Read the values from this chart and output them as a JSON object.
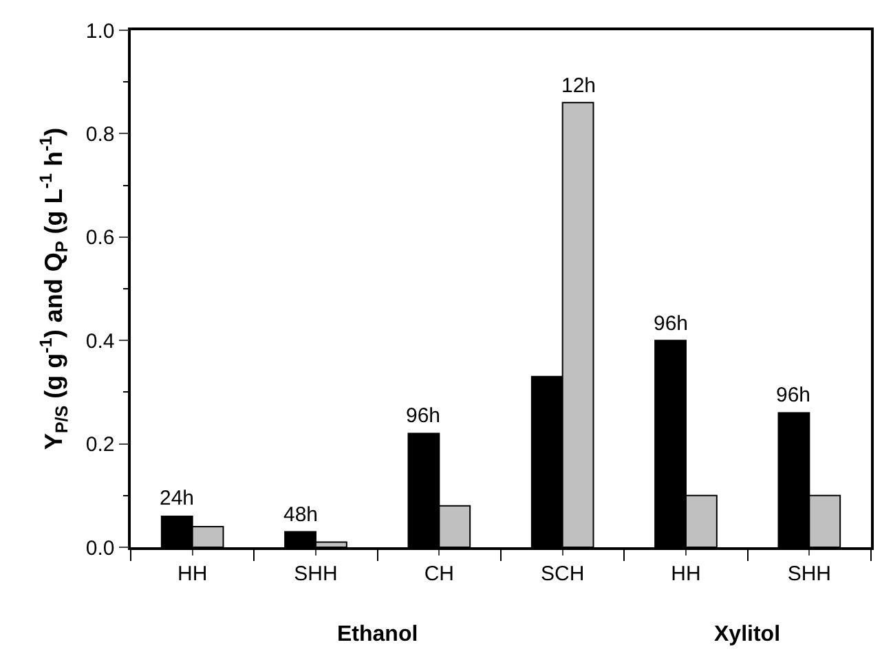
{
  "chart_data": {
    "type": "bar",
    "ylabel": "Y$_{P/S}$ (g g$^{-1}$) and Q$_{P}$ (g L$^{-1}$ h$^{-1}$)",
    "categories": [
      "HH",
      "SHH",
      "CH",
      "SCH",
      "HH",
      "SHH"
    ],
    "series": [
      {
        "color": "#000000",
        "values": [
          0.06,
          0.03,
          0.22,
          0.33,
          0.4,
          0.26
        ]
      },
      {
        "color": "#c0c0c0",
        "values": [
          0.04,
          0.01,
          0.08,
          0.86,
          0.1,
          0.1
        ]
      }
    ],
    "ylim": [
      0,
      1.0
    ],
    "yticks": [
      {
        "value": 0,
        "label": "0.0"
      },
      {
        "value": 0.1,
        "label": null
      },
      {
        "value": 0.2,
        "label": "0.2"
      },
      {
        "value": 0.3,
        "label": null
      },
      {
        "value": 0.4,
        "label": "0.4"
      },
      {
        "value": 0.5,
        "label": null
      },
      {
        "value": 0.6,
        "label": "0.6"
      },
      {
        "value": 0.7,
        "label": null
      },
      {
        "value": 0.8,
        "label": "0.8"
      },
      {
        "value": 0.9,
        "label": null
      },
      {
        "value": 1.0,
        "label": "1.0"
      }
    ],
    "annotations": [
      "24h",
      "48h",
      "96h",
      "12h",
      "96h",
      "96h",
      "Ethanol",
      "Xylitol"
    ],
    "grid": false
  }
}
